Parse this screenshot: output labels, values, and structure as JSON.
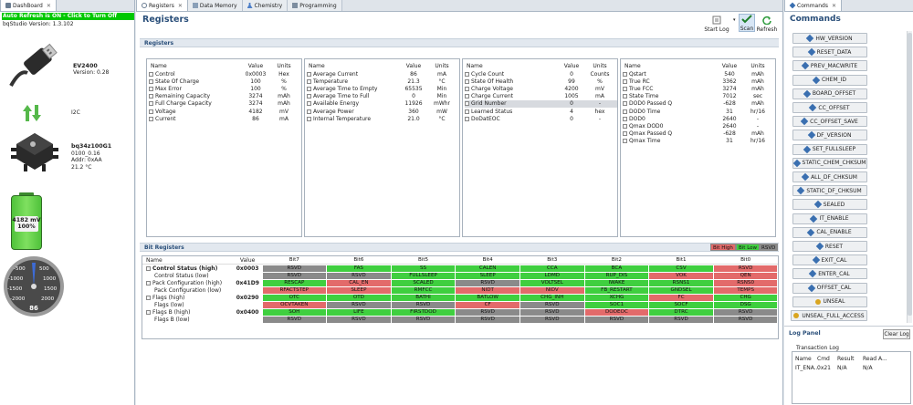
{
  "left": {
    "tab": "DashBoard",
    "auto_refresh": "Auto Refresh is ON - Click to Turn Off",
    "version": "bqStudio Version:  1.3.102",
    "ev_name": "EV2400",
    "ev_version": "Version: 0.28",
    "link": "I2C",
    "chip_name": "bq34z100G1",
    "chip_fw": "0100_0.16",
    "chip_addr": "Addr: 0xAA",
    "chip_temp": "21.2 °C",
    "battery_mv": "4182 mV",
    "battery_pct": "100%",
    "battery_level": 1.0,
    "gauge_labels": [
      "-500",
      "500",
      "-1000",
      "1000",
      "-1500",
      "1500",
      "-2000",
      "2000"
    ],
    "gauge_value": "86"
  },
  "tabs": [
    "Registers",
    "Data Memory",
    "Chemistry",
    "Programming"
  ],
  "registers": {
    "title": "Registers",
    "toolbar": {
      "start_log": "Start Log",
      "scan": "Scan",
      "refresh": "Refresh"
    },
    "section": "Registers",
    "headers": [
      "Name",
      "Value",
      "Units"
    ],
    "tables": [
      [
        [
          "Control",
          "0x0003",
          "Hex"
        ],
        [
          "State Of Charge",
          "100",
          "%"
        ],
        [
          "Max Error",
          "100",
          "%"
        ],
        [
          "Remaining Capacity",
          "3274",
          "mAh"
        ],
        [
          "Full Charge Capacity",
          "3274",
          "mAh"
        ],
        [
          "Voltage",
          "4182",
          "mV"
        ],
        [
          "Current",
          "86",
          "mA"
        ]
      ],
      [
        [
          "Average Current",
          "86",
          "mA"
        ],
        [
          "Temperature",
          "21.3",
          "°C"
        ],
        [
          "Average Time to Empty",
          "65535",
          "Min"
        ],
        [
          "Average Time to Full",
          "0",
          "Min"
        ],
        [
          "Available Energy",
          "11926",
          "mWhr"
        ],
        [
          "Average Power",
          "360",
          "mW"
        ],
        [
          "Internal Temperature",
          "21.0",
          "°C"
        ]
      ],
      [
        [
          "Cycle Count",
          "0",
          "Counts"
        ],
        [
          "State Of Health",
          "99",
          "%"
        ],
        [
          "Charge Voltage",
          "4200",
          "mV"
        ],
        [
          "Charge Current",
          "1005",
          "mA"
        ],
        [
          "Grid Number",
          "0",
          "-"
        ],
        [
          "Learned Status",
          "4",
          "hex"
        ],
        [
          "DoDatEOC",
          "0",
          "-"
        ]
      ],
      [
        [
          "Qstart",
          "540",
          "mAh"
        ],
        [
          "True RC",
          "3362",
          "mAh"
        ],
        [
          "True FCC",
          "3274",
          "mAh"
        ],
        [
          "State Time",
          "7012",
          "sec"
        ],
        [
          "DOD0 Passed Q",
          "-628",
          "mAh"
        ],
        [
          "DOD0 Time",
          "31",
          "hr/16"
        ],
        [
          "DOD0",
          "2640",
          "-"
        ],
        [
          "Qmax DOD0",
          "2640",
          "-"
        ],
        [
          "Qmax Passed Q",
          "-628",
          "mAh"
        ],
        [
          "Qmax Time",
          "31",
          "hr/16"
        ]
      ]
    ]
  },
  "bit_registers": {
    "section": "Bit Registers",
    "legend": [
      "Bit High",
      "Bit Low",
      "RSVD"
    ],
    "headers": [
      "Name",
      "Value",
      "Bit7",
      "Bit6",
      "Bit5",
      "Bit4",
      "Bit3",
      "Bit2",
      "Bit1",
      "Bit0"
    ],
    "rows": [
      {
        "name": "Control Status (high)",
        "value": "0x0003",
        "bold": true,
        "bits": [
          [
            "RSVD",
            "g"
          ],
          [
            "FAS",
            "G"
          ],
          [
            "SS",
            "G"
          ],
          [
            "CALEN",
            "G"
          ],
          [
            "CCA",
            "G"
          ],
          [
            "BCA",
            "G"
          ],
          [
            "CSV",
            "G"
          ],
          [
            "RSVD",
            "r"
          ]
        ]
      },
      {
        "name": "Control Status (low)",
        "value": "",
        "bold": false,
        "bits": [
          [
            "RSVD",
            "g"
          ],
          [
            "RSVD",
            "g"
          ],
          [
            "FULLSLEEP",
            "G"
          ],
          [
            "SLEEP",
            "G"
          ],
          [
            "LDMD",
            "G"
          ],
          [
            "RUP_DIS",
            "G"
          ],
          [
            "VOK",
            "R"
          ],
          [
            "QEN",
            "R"
          ]
        ]
      },
      {
        "name": "Pack Configuration (high)",
        "value": "0x41D9",
        "bold": false,
        "bits": [
          [
            "RESCAP",
            "G"
          ],
          [
            "CAL_EN",
            "R"
          ],
          [
            "SCALED",
            "G"
          ],
          [
            "RSVD",
            "g"
          ],
          [
            "VOLTSEL",
            "G"
          ],
          [
            "IWAKE",
            "G"
          ],
          [
            "RSNS1",
            "G"
          ],
          [
            "RSNS0",
            "R"
          ]
        ]
      },
      {
        "name": "Pack Configuration (low)",
        "value": "",
        "bold": false,
        "bits": [
          [
            "RFACTSTEP",
            "R"
          ],
          [
            "SLEEP",
            "R"
          ],
          [
            "RMFCC",
            "G"
          ],
          [
            "NIDT",
            "R"
          ],
          [
            "NIDV",
            "R"
          ],
          [
            "FB_RESTART",
            "G"
          ],
          [
            "GNDSEL",
            "G"
          ],
          [
            "TEMPS",
            "R"
          ]
        ]
      },
      {
        "name": "Flags (high)",
        "value": "0x0290",
        "bold": false,
        "bits": [
          [
            "OTC",
            "G"
          ],
          [
            "OTD",
            "G"
          ],
          [
            "BATHI",
            "G"
          ],
          [
            "BATLOW",
            "G"
          ],
          [
            "CHG_INH",
            "G"
          ],
          [
            "XCHG",
            "G"
          ],
          [
            "FC",
            "R"
          ],
          [
            "CHG",
            "G"
          ]
        ]
      },
      {
        "name": "Flags (low)",
        "value": "",
        "bold": false,
        "bits": [
          [
            "OCVTAKEN",
            "R"
          ],
          [
            "RSVD",
            "g"
          ],
          [
            "RSVD",
            "g"
          ],
          [
            "CF",
            "R"
          ],
          [
            "RSVD",
            "g"
          ],
          [
            "SOC1",
            "G"
          ],
          [
            "SOCF",
            "G"
          ],
          [
            "DSG",
            "G"
          ]
        ]
      },
      {
        "name": "Flags B (high)",
        "value": "0x0400",
        "bold": false,
        "bits": [
          [
            "SOH",
            "G"
          ],
          [
            "LIFE",
            "G"
          ],
          [
            "FIRSTDOD",
            "G"
          ],
          [
            "RSVD",
            "g"
          ],
          [
            "RSVD",
            "g"
          ],
          [
            "DODEOC",
            "R"
          ],
          [
            "DTRC",
            "G"
          ],
          [
            "RSVD",
            "g"
          ]
        ]
      },
      {
        "name": "Flags B (low)",
        "value": "",
        "bold": false,
        "bits": [
          [
            "RSVD",
            "g"
          ],
          [
            "RSVD",
            "g"
          ],
          [
            "RSVD",
            "g"
          ],
          [
            "RSVD",
            "g"
          ],
          [
            "RSVD",
            "g"
          ],
          [
            "RSVD",
            "g"
          ],
          [
            "RSVD",
            "g"
          ],
          [
            "RSVD",
            "g"
          ]
        ]
      }
    ]
  },
  "commands": {
    "tab": "Commands",
    "title": "Commands",
    "items": [
      "HW_VERSION",
      "RESET_DATA",
      "PREV_MACWRITE",
      "CHEM_ID",
      "BOARD_OFFSET",
      "CC_OFFSET",
      "CC_OFFSET_SAVE",
      "DF_VERSION",
      "SET_FULLSLEEP",
      "STATIC_CHEM_CHKSUM",
      "ALL_DF_CHKSUM",
      "STATIC_DF_CHKSUM",
      "SEALED",
      "IT_ENABLE",
      "CAL_ENABLE",
      "RESET",
      "EXIT_CAL",
      "ENTER_CAL",
      "OFFSET_CAL",
      "UNSEAL",
      "UNSEAL_FULL_ACCESS"
    ]
  },
  "log": {
    "title": "Log Panel",
    "clear": "Clear Log",
    "section": "Transaction Log",
    "headers": [
      "Name",
      "Cmd",
      "Result",
      "Read A..."
    ],
    "rows": [
      [
        "IT_ENA...",
        "0x21",
        "N/A",
        "N/A"
      ]
    ]
  },
  "colors": {
    "bit_high": "#3fcf3f",
    "bit_low": "#e36a6a",
    "rsvd": "#8a8a8a",
    "accent": "#2a4f7a"
  }
}
